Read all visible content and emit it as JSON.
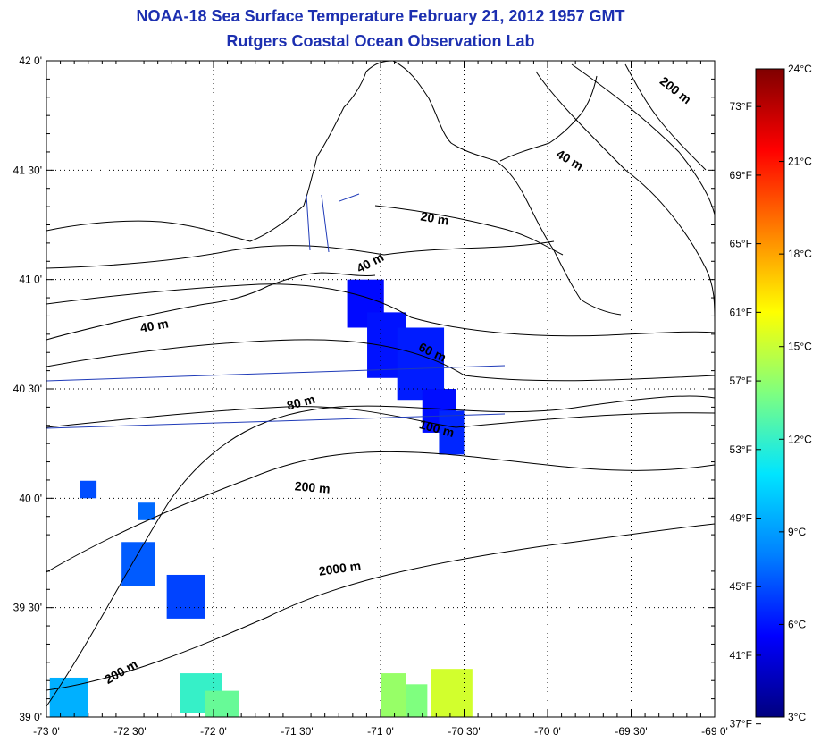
{
  "title": "NOAA-18 Sea Surface Temperature February 21, 2012 1957 GMT",
  "subtitle": "Rutgers Coastal Ocean Observation Lab",
  "map": {
    "lon_range": [
      -73.0,
      -69.0
    ],
    "lat_range": [
      39.0,
      42.0
    ],
    "grid": true,
    "lon_ticks": [
      {
        "value": -73.0,
        "label": "-73 0'"
      },
      {
        "value": -72.5,
        "label": "-72 30'"
      },
      {
        "value": -72.0,
        "label": "-72 0'"
      },
      {
        "value": -71.5,
        "label": "-71 30'"
      },
      {
        "value": -71.0,
        "label": "-71 0'"
      },
      {
        "value": -70.5,
        "label": "-70 30'"
      },
      {
        "value": -70.0,
        "label": "-70 0'"
      },
      {
        "value": -69.5,
        "label": "-69 30'"
      },
      {
        "value": -69.0,
        "label": "-69 0'"
      }
    ],
    "lat_ticks": [
      {
        "value": 42.0,
        "label": "42 0'"
      },
      {
        "value": 41.5,
        "label": "41 30'"
      },
      {
        "value": 41.0,
        "label": "41 0'"
      },
      {
        "value": 40.5,
        "label": "40 30'"
      },
      {
        "value": 40.0,
        "label": "40 0'"
      },
      {
        "value": 39.5,
        "label": "39 30'"
      },
      {
        "value": 39.0,
        "label": "39 0'"
      }
    ],
    "contour_labels": [
      {
        "text": "200 m",
        "lon": -69.25,
        "lat": 41.85,
        "angle": 38
      },
      {
        "text": "40 m",
        "lon": -69.88,
        "lat": 41.53,
        "angle": 30
      },
      {
        "text": "20 m",
        "lon": -70.68,
        "lat": 41.26,
        "angle": 10
      },
      {
        "text": "40 m",
        "lon": -71.05,
        "lat": 41.06,
        "angle": -28
      },
      {
        "text": "40 m",
        "lon": -72.35,
        "lat": 40.77,
        "angle": -10
      },
      {
        "text": "60 m",
        "lon": -70.7,
        "lat": 40.65,
        "angle": 25
      },
      {
        "text": "80 m",
        "lon": -71.47,
        "lat": 40.42,
        "angle": -15
      },
      {
        "text": "100 m",
        "lon": -70.67,
        "lat": 40.3,
        "angle": 15
      },
      {
        "text": "200 m",
        "lon": -71.41,
        "lat": 40.03,
        "angle": 5
      },
      {
        "text": "2000 m",
        "lon": -71.24,
        "lat": 39.66,
        "angle": -8
      },
      {
        "text": "200 m",
        "lon": -72.54,
        "lat": 39.19,
        "angle": -30
      }
    ]
  },
  "colorbar": {
    "colors": [
      "#00007f",
      "#0000ff",
      "#0080ff",
      "#00e5ff",
      "#7fff7f",
      "#ffff00",
      "#ff8000",
      "#ff0000",
      "#7f0000"
    ],
    "celsius_range": [
      3,
      24
    ],
    "celsius_ticks": [
      {
        "value": 24,
        "label": "24°C"
      },
      {
        "value": 21,
        "label": "21°C"
      },
      {
        "value": 18,
        "label": "18°C"
      },
      {
        "value": 15,
        "label": "15°C"
      },
      {
        "value": 12,
        "label": "12°C"
      },
      {
        "value": 9,
        "label": "9°C"
      },
      {
        "value": 6,
        "label": "6°C"
      },
      {
        "value": 3,
        "label": "3°C"
      }
    ],
    "fahrenheit_ticks": [
      {
        "value": 73,
        "label": "73°F"
      },
      {
        "value": 69,
        "label": "69°F"
      },
      {
        "value": 65,
        "label": "65°F"
      },
      {
        "value": 61,
        "label": "61°F"
      },
      {
        "value": 57,
        "label": "57°F"
      },
      {
        "value": 53,
        "label": "53°F"
      },
      {
        "value": 49,
        "label": "49°F"
      },
      {
        "value": 45,
        "label": "45°F"
      },
      {
        "value": 41,
        "label": "41°F"
      },
      {
        "value": 37,
        "label": "37°F"
      }
    ]
  },
  "sst_patches": [
    {
      "lon": [
        -71.2,
        -70.98
      ],
      "lat": [
        40.78,
        41.0
      ],
      "temp_c": 5.8
    },
    {
      "lon": [
        -71.08,
        -70.85
      ],
      "lat": [
        40.55,
        40.85
      ],
      "temp_c": 6.0
    },
    {
      "lon": [
        -70.9,
        -70.62
      ],
      "lat": [
        40.45,
        40.78
      ],
      "temp_c": 6.2
    },
    {
      "lon": [
        -70.75,
        -70.55
      ],
      "lat": [
        40.3,
        40.5
      ],
      "temp_c": 5.9
    },
    {
      "lon": [
        -70.65,
        -70.5
      ],
      "lat": [
        40.2,
        40.4
      ],
      "temp_c": 6.4
    },
    {
      "lon": [
        -72.55,
        -72.35
      ],
      "lat": [
        39.6,
        39.8
      ],
      "temp_c": 7.5
    },
    {
      "lon": [
        -72.28,
        -72.05
      ],
      "lat": [
        39.45,
        39.65
      ],
      "temp_c": 7.0
    },
    {
      "lon": [
        -72.8,
        -72.7
      ],
      "lat": [
        40.0,
        40.08
      ],
      "temp_c": 7.2
    },
    {
      "lon": [
        -72.45,
        -72.35
      ],
      "lat": [
        39.9,
        39.98
      ],
      "temp_c": 7.8
    },
    {
      "lon": [
        -72.98,
        -72.75
      ],
      "lat": [
        39.0,
        39.18
      ],
      "temp_c": 9.5
    },
    {
      "lon": [
        -72.2,
        -71.95
      ],
      "lat": [
        39.02,
        39.2
      ],
      "temp_c": 12.0
    },
    {
      "lon": [
        -72.05,
        -71.85
      ],
      "lat": [
        39.0,
        39.12
      ],
      "temp_c": 13.0
    },
    {
      "lon": [
        -71.0,
        -70.85
      ],
      "lat": [
        39.0,
        39.2
      ],
      "temp_c": 14.0
    },
    {
      "lon": [
        -70.85,
        -70.72
      ],
      "lat": [
        39.0,
        39.15
      ],
      "temp_c": 13.5
    },
    {
      "lon": [
        -70.7,
        -70.45
      ],
      "lat": [
        39.0,
        39.22
      ],
      "temp_c": 15.2
    }
  ]
}
